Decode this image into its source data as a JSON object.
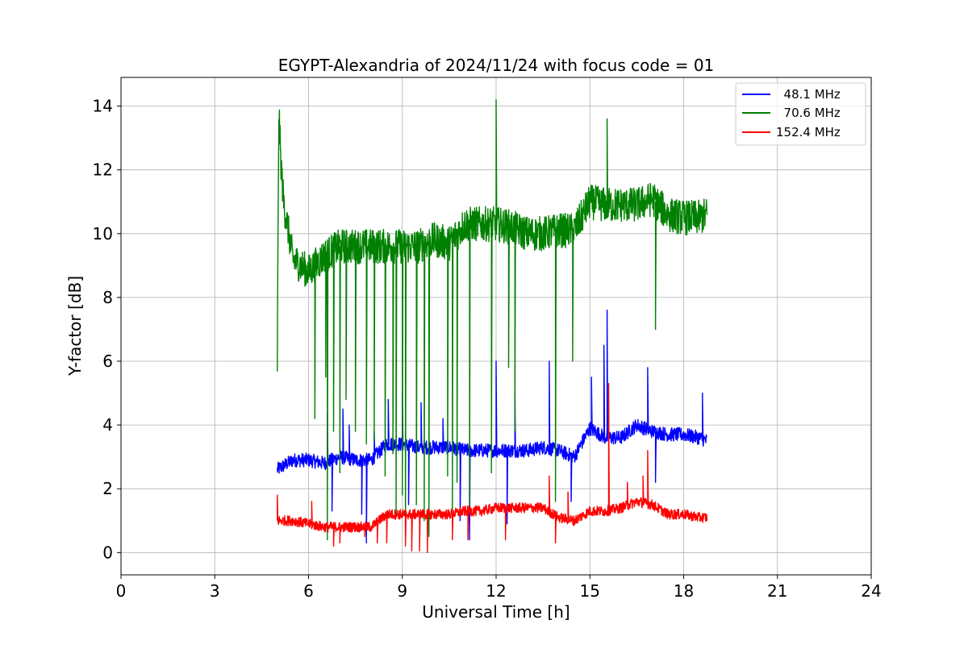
{
  "chart_data": {
    "type": "line",
    "title": "EGYPT-Alexandria of 2024/11/24 with focus code = 01",
    "xlabel": "Universal Time [h]",
    "ylabel": "Y-factor [dB]",
    "xlim": [
      0,
      24
    ],
    "ylim": [
      -0.7,
      14.9
    ],
    "x_ticks": [
      0,
      3,
      6,
      9,
      12,
      15,
      18,
      21,
      24
    ],
    "y_ticks": [
      0,
      2,
      4,
      6,
      8,
      10,
      12,
      14
    ],
    "grid": true,
    "legend_position": "top-right",
    "x_range_recorded": [
      5.0,
      18.75
    ],
    "series": [
      {
        "name": "  48.1 MHz",
        "color": "#0000ff",
        "noise": 0.22,
        "points": [
          [
            5.0,
            2.6
          ],
          [
            5.5,
            2.9
          ],
          [
            6.0,
            2.9
          ],
          [
            6.5,
            2.8
          ],
          [
            7.0,
            3.0
          ],
          [
            7.5,
            2.9
          ],
          [
            8.0,
            2.9
          ],
          [
            8.5,
            3.4
          ],
          [
            9.0,
            3.4
          ],
          [
            9.5,
            3.3
          ],
          [
            10.0,
            3.3
          ],
          [
            10.5,
            3.3
          ],
          [
            11.0,
            3.2
          ],
          [
            11.5,
            3.2
          ],
          [
            12.0,
            3.2
          ],
          [
            12.5,
            3.2
          ],
          [
            13.0,
            3.2
          ],
          [
            13.5,
            3.3
          ],
          [
            14.0,
            3.2
          ],
          [
            14.5,
            3.0
          ],
          [
            15.0,
            3.9
          ],
          [
            15.5,
            3.6
          ],
          [
            16.0,
            3.6
          ],
          [
            16.5,
            4.0
          ],
          [
            17.0,
            3.8
          ],
          [
            17.5,
            3.7
          ],
          [
            18.0,
            3.7
          ],
          [
            18.5,
            3.6
          ],
          [
            18.75,
            3.5
          ]
        ],
        "spikes": [
          [
            6.6,
            4.4
          ],
          [
            6.75,
            1.3
          ],
          [
            7.1,
            4.5
          ],
          [
            7.3,
            4.0
          ],
          [
            7.7,
            1.2
          ],
          [
            7.85,
            0.3
          ],
          [
            8.1,
            3.8
          ],
          [
            8.55,
            4.8
          ],
          [
            9.0,
            5.1
          ],
          [
            9.2,
            1.5
          ],
          [
            9.6,
            4.7
          ],
          [
            10.3,
            4.2
          ],
          [
            10.85,
            1.0
          ],
          [
            11.15,
            0.4
          ],
          [
            12.0,
            6.0
          ],
          [
            12.35,
            0.9
          ],
          [
            12.6,
            5.0
          ],
          [
            13.7,
            6.0
          ],
          [
            14.4,
            1.6
          ],
          [
            15.05,
            5.5
          ],
          [
            15.45,
            6.5
          ],
          [
            15.55,
            7.6
          ],
          [
            16.85,
            5.8
          ],
          [
            17.1,
            2.2
          ],
          [
            18.6,
            5.0
          ]
        ]
      },
      {
        "name": "  70.6 MHz",
        "color": "#008000",
        "noise": 0.55,
        "points": [
          [
            5.0,
            5.9
          ],
          [
            5.05,
            14.0
          ],
          [
            5.1,
            12.5
          ],
          [
            5.2,
            11.0
          ],
          [
            5.5,
            9.2
          ],
          [
            6.0,
            8.8
          ],
          [
            6.5,
            9.3
          ],
          [
            7.0,
            9.6
          ],
          [
            7.5,
            9.6
          ],
          [
            8.0,
            9.6
          ],
          [
            8.5,
            9.6
          ],
          [
            9.0,
            9.6
          ],
          [
            9.5,
            9.6
          ],
          [
            10.0,
            9.8
          ],
          [
            10.5,
            9.7
          ],
          [
            11.0,
            10.3
          ],
          [
            11.5,
            10.3
          ],
          [
            12.0,
            10.3
          ],
          [
            12.5,
            10.2
          ],
          [
            13.0,
            10.0
          ],
          [
            13.5,
            10.0
          ],
          [
            14.0,
            10.1
          ],
          [
            14.5,
            10.1
          ],
          [
            15.0,
            11.0
          ],
          [
            15.5,
            10.9
          ],
          [
            16.0,
            10.9
          ],
          [
            16.5,
            10.9
          ],
          [
            17.0,
            11.1
          ],
          [
            17.5,
            10.6
          ],
          [
            18.0,
            10.5
          ],
          [
            18.5,
            10.5
          ],
          [
            18.75,
            10.6
          ]
        ],
        "spikes": [
          [
            6.2,
            4.2
          ],
          [
            6.55,
            5.5
          ],
          [
            6.6,
            0.4
          ],
          [
            6.8,
            3.8
          ],
          [
            7.0,
            2.5
          ],
          [
            7.2,
            4.8
          ],
          [
            7.5,
            3.8
          ],
          [
            7.85,
            3.4
          ],
          [
            8.1,
            3.5
          ],
          [
            8.45,
            2.4
          ],
          [
            8.7,
            3.1
          ],
          [
            8.8,
            1.2
          ],
          [
            9.0,
            1.8
          ],
          [
            9.1,
            0.6
          ],
          [
            9.45,
            1.5
          ],
          [
            9.7,
            1.0
          ],
          [
            9.85,
            0.5
          ],
          [
            10.45,
            2.4
          ],
          [
            10.6,
            0.9
          ],
          [
            10.75,
            2.2
          ],
          [
            11.15,
            1.3
          ],
          [
            11.85,
            2.5
          ],
          [
            12.0,
            14.2
          ],
          [
            12.4,
            5.8
          ],
          [
            12.6,
            3.8
          ],
          [
            13.9,
            1.6
          ],
          [
            14.45,
            6.0
          ],
          [
            15.55,
            13.6
          ],
          [
            17.1,
            7.0
          ]
        ]
      },
      {
        "name": "152.4 MHz",
        "color": "#ff0000",
        "noise": 0.16,
        "points": [
          [
            5.0,
            1.0
          ],
          [
            5.5,
            1.0
          ],
          [
            6.0,
            0.9
          ],
          [
            6.5,
            0.8
          ],
          [
            7.0,
            0.8
          ],
          [
            7.5,
            0.8
          ],
          [
            8.0,
            0.8
          ],
          [
            8.5,
            1.2
          ],
          [
            9.0,
            1.2
          ],
          [
            9.5,
            1.2
          ],
          [
            10.0,
            1.2
          ],
          [
            10.5,
            1.2
          ],
          [
            11.0,
            1.3
          ],
          [
            11.5,
            1.3
          ],
          [
            12.0,
            1.4
          ],
          [
            12.5,
            1.4
          ],
          [
            13.0,
            1.4
          ],
          [
            13.5,
            1.4
          ],
          [
            14.0,
            1.1
          ],
          [
            14.5,
            1.0
          ],
          [
            15.0,
            1.3
          ],
          [
            15.5,
            1.3
          ],
          [
            16.0,
            1.4
          ],
          [
            16.5,
            1.6
          ],
          [
            17.0,
            1.5
          ],
          [
            17.5,
            1.2
          ],
          [
            18.0,
            1.2
          ],
          [
            18.5,
            1.1
          ],
          [
            18.75,
            1.1
          ]
        ],
        "spikes": [
          [
            5.0,
            1.8
          ],
          [
            6.1,
            1.6
          ],
          [
            6.8,
            0.2
          ],
          [
            7.0,
            0.3
          ],
          [
            7.4,
            0.9
          ],
          [
            7.8,
            0.5
          ],
          [
            8.2,
            0.3
          ],
          [
            8.5,
            0.3
          ],
          [
            9.1,
            0.2
          ],
          [
            9.3,
            0.05
          ],
          [
            9.55,
            0.05
          ],
          [
            9.8,
            0.0
          ],
          [
            10.6,
            0.4
          ],
          [
            11.1,
            0.4
          ],
          [
            12.3,
            0.4
          ],
          [
            13.7,
            2.4
          ],
          [
            13.9,
            0.3
          ],
          [
            14.3,
            1.9
          ],
          [
            15.6,
            5.3
          ],
          [
            16.2,
            2.2
          ],
          [
            16.7,
            2.4
          ],
          [
            16.85,
            3.2
          ]
        ]
      }
    ]
  }
}
